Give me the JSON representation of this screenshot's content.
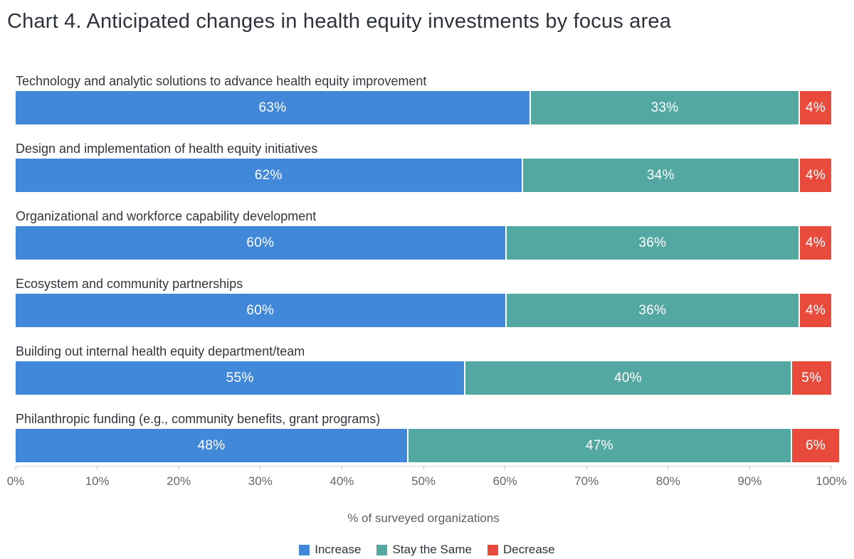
{
  "title": "Chart 4. Anticipated changes in health equity investments by focus area",
  "chart_data": {
    "type": "bar",
    "orientation": "horizontal",
    "stacked": true,
    "categories": [
      "Technology and analytic solutions to advance health equity improvement",
      "Design and implementation of health equity initiatives",
      "Organizational and workforce capability development",
      "Ecosystem and community partnerships",
      "Building out internal health equity department/team",
      "Philanthropic funding (e.g., community benefits, grant programs)"
    ],
    "series": [
      {
        "name": "Increase",
        "color": "#4189d8",
        "values": [
          63,
          62,
          60,
          60,
          55,
          48
        ]
      },
      {
        "name": "Stay the Same",
        "color": "#54a8a2",
        "values": [
          33,
          34,
          36,
          36,
          40,
          47
        ]
      },
      {
        "name": "Decrease",
        "color": "#e84b3c",
        "values": [
          4,
          4,
          4,
          4,
          5,
          6
        ]
      }
    ],
    "value_label_suffix": "%",
    "xlabel": "% of surveyed organizations",
    "x_ticks": [
      "0%",
      "10%",
      "20%",
      "30%",
      "40%",
      "50%",
      "60%",
      "70%",
      "80%",
      "90%",
      "100%"
    ],
    "xlim": [
      0,
      100
    ],
    "grid": false,
    "legend_position": "bottom",
    "bar_label_text_color": "#ffffff"
  }
}
